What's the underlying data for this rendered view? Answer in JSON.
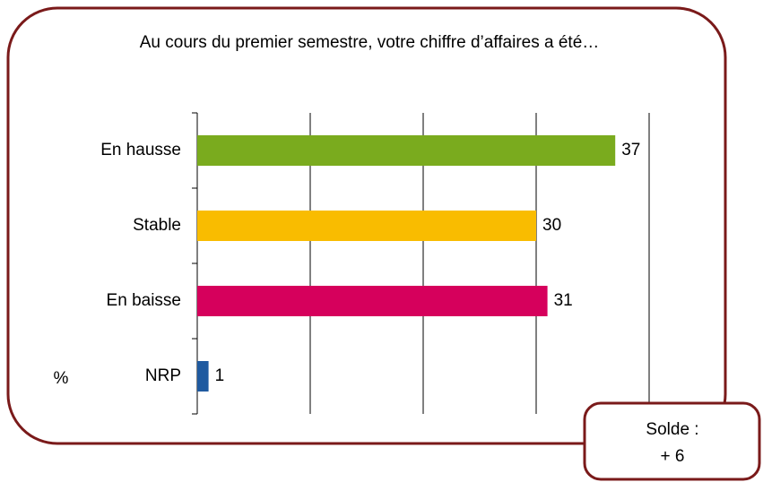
{
  "chart_data": {
    "type": "hbar",
    "title": "Au cours du premier semestre, votre chiffre d’affaires a été…",
    "categories": [
      "En hausse",
      "Stable",
      "En baisse",
      "NRP"
    ],
    "values": [
      37,
      30,
      31,
      1
    ],
    "colors": [
      "#7aab1e",
      "#f9bc00",
      "#d6005c",
      "#1f5aa0"
    ],
    "xlim": [
      0,
      40
    ],
    "xticks": [
      0,
      10,
      20,
      30,
      40
    ],
    "grid": true,
    "unit_label": "%",
    "annotation": {
      "label": "Solde :",
      "value": "+ 6"
    }
  }
}
